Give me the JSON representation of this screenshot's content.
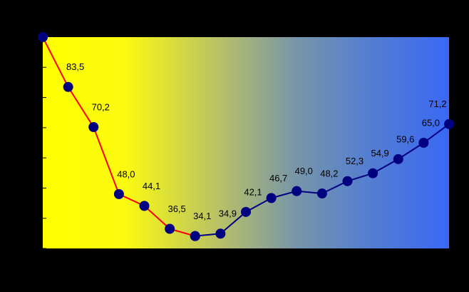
{
  "chart_data": {
    "type": "line",
    "categories": [
      null,
      null,
      null,
      null,
      null,
      null,
      null,
      null,
      null,
      null,
      null,
      null,
      null,
      null,
      null,
      null,
      null
    ],
    "ylim": [
      30,
      100
    ],
    "yticks": [
      30,
      40,
      50,
      60,
      70,
      80,
      90,
      100
    ],
    "marker_color": "#000080",
    "series": [
      {
        "color": "#ff0000",
        "values": [
          100,
          83.5,
          70.2,
          48.0,
          44.1,
          36.5,
          34.1,
          null,
          null,
          null,
          null,
          null,
          null,
          null,
          null,
          null,
          null
        ],
        "value_labels": [
          null,
          "83,5",
          "70,2",
          "48,0",
          "44,1",
          "36,5",
          "34,1",
          null,
          null,
          null,
          null,
          null,
          null,
          null,
          null,
          null,
          null
        ]
      },
      {
        "color": "#000080",
        "values": [
          null,
          null,
          null,
          null,
          null,
          null,
          34.1,
          34.9,
          42.1,
          46.7,
          49.0,
          48.2,
          52.3,
          54.9,
          59.6,
          65.0,
          71.2
        ],
        "value_labels": [
          null,
          null,
          null,
          null,
          null,
          null,
          null,
          "34,9",
          "42,1",
          "46,7",
          "49,0",
          "48,2",
          "52,3",
          "54,9",
          "59,6",
          "65,0",
          "71,2"
        ]
      }
    ]
  }
}
